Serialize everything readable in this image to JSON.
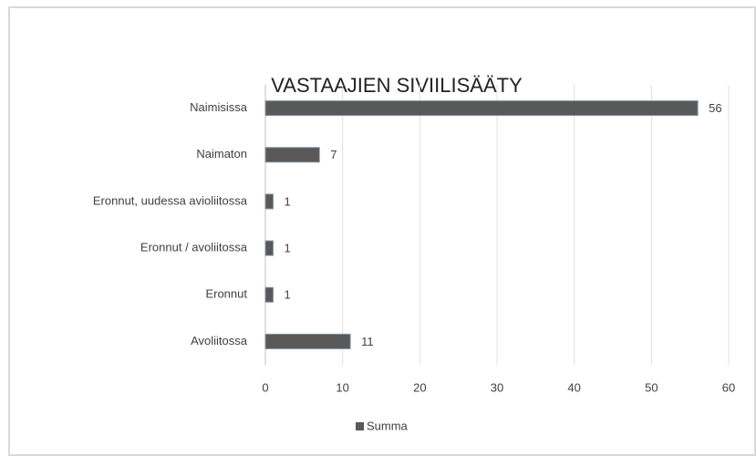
{
  "chart_data": {
    "type": "bar",
    "orientation": "horizontal",
    "title": "VASTAAJIEN SIVIILISÄÄTY",
    "categories": [
      "Naimisissa",
      "Naimaton",
      "Eronnut, uudessa avioliitossa",
      "Eronnut / avoliitossa",
      "Eronnut",
      "Avoliitossa"
    ],
    "series": [
      {
        "name": "Summa",
        "color": "#595959",
        "values": [
          56,
          7,
          1,
          1,
          1,
          11
        ]
      }
    ],
    "xlim": [
      0,
      60
    ],
    "xticks": [
      0,
      10,
      20,
      30,
      40,
      50,
      60
    ],
    "grid": true,
    "legend": "bottom"
  }
}
